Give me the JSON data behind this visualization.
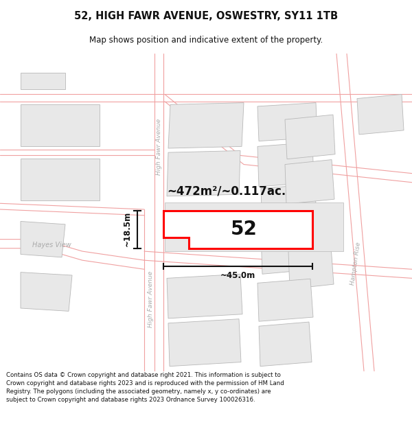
{
  "title": "52, HIGH FAWR AVENUE, OSWESTRY, SY11 1TB",
  "subtitle": "Map shows position and indicative extent of the property.",
  "legal_text": "Contains OS data © Crown copyright and database right 2021. This information is subject to Crown copyright and database rights 2023 and is reproduced with the permission of HM Land Registry. The polygons (including the associated geometry, namely x, y co-ordinates) are subject to Crown copyright and database rights 2023 Ordnance Survey 100026316.",
  "map_bg": "#ffffff",
  "fig_bg": "#ffffff",
  "road_color": "#f0a0a0",
  "building_color": "#e8e8e8",
  "building_edge": "#b8b8b8",
  "plot_color": "#ff0000",
  "plot_fill": "#ffffff",
  "dim_color": "#111111",
  "street_label_color": "#aaaaaa",
  "area_text": "~472m²/~0.117ac.",
  "width_text": "~45.0m",
  "height_text": "~18.5m",
  "number_text": "52",
  "street_label_1": "High Fawr Avenue",
  "street_label_2": "High Fawr Avenue",
  "street_label_3": "Hampton Rise",
  "street_label_4": "Hayes View"
}
